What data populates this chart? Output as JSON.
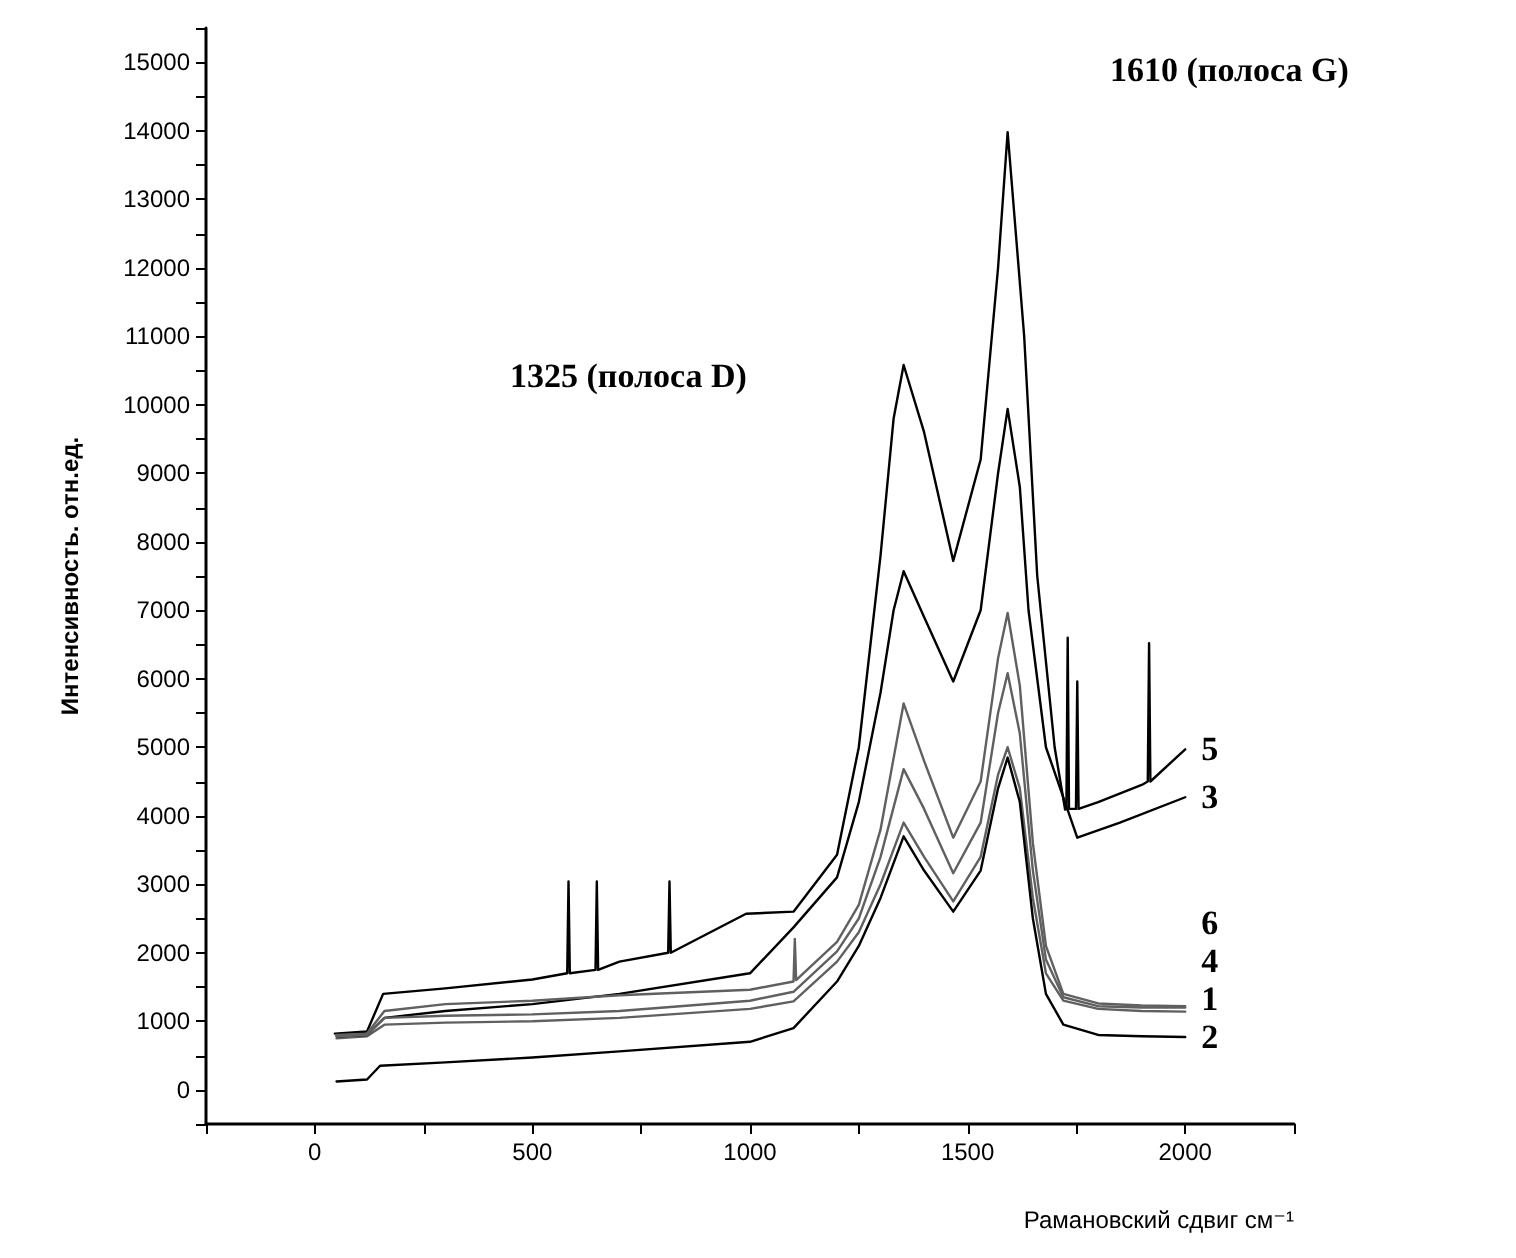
{
  "chart_data": {
    "type": "line",
    "xlabel": "Рамановский сдвиг см⁻¹",
    "ylabel": "Интенсивность. отн.ед.",
    "xlim": [
      -250,
      2250
    ],
    "xticks": [
      {
        "value": -250,
        "label": null
      },
      0,
      {
        "value": 250,
        "label": null
      },
      500,
      {
        "value": 750,
        "label": null
      },
      1000,
      {
        "value": 1250,
        "label": null
      },
      1500,
      {
        "value": 1750,
        "label": null
      },
      2000,
      {
        "value": 2250,
        "label": null
      }
    ],
    "ylim": [
      -500,
      15500
    ],
    "yticks": [
      {
        "value": -500,
        "label": null
      },
      0,
      {
        "value": 500,
        "label": null
      },
      1000,
      {
        "value": 1500,
        "label": null
      },
      2000,
      {
        "value": 2500,
        "label": null
      },
      3000,
      {
        "value": 3500,
        "label": null
      },
      4000,
      {
        "value": 4500,
        "label": null
      },
      5000,
      {
        "value": 5500,
        "label": null
      },
      6000,
      {
        "value": 6500,
        "label": null
      },
      7000,
      {
        "value": 7500,
        "label": null
      },
      8000,
      {
        "value": 8500,
        "label": null
      },
      9000,
      {
        "value": 9500,
        "label": null
      },
      10000,
      {
        "value": 10500,
        "label": null
      },
      11000,
      {
        "value": 11500,
        "label": null
      },
      12000,
      {
        "value": 12500,
        "label": null
      },
      13000,
      {
        "value": 13500,
        "label": null
      },
      14000,
      {
        "value": 14500,
        "label": null
      },
      15000,
      {
        "value": 15500,
        "label": null
      }
    ],
    "grid": false,
    "legend": false,
    "annotations": [
      "1325 (полоса D)",
      "1610 (полоса G)"
    ],
    "series": [
      {
        "name": "1",
        "color": "#606060",
        "x": [
          50,
          120,
          160,
          300,
          500,
          700,
          1000,
          1100,
          1200,
          1250,
          1300,
          1353,
          1400,
          1467,
          1530,
          1570,
          1592,
          1620,
          1650,
          1680,
          1720,
          1800,
          1900,
          2000
        ],
        "values": [
          750,
          780,
          950,
          980,
          1000,
          1050,
          1180,
          1290,
          1870,
          2300,
          3000,
          3900,
          3400,
          2750,
          3400,
          4600,
          5000,
          4400,
          2800,
          1700,
          1300,
          1180,
          1150,
          1140
        ]
      },
      {
        "name": "2",
        "color": "#000000",
        "x": [
          50,
          120,
          150,
          300,
          500,
          700,
          1000,
          1100,
          1200,
          1250,
          1300,
          1353,
          1400,
          1467,
          1530,
          1570,
          1592,
          1620,
          1650,
          1680,
          1720,
          1800,
          1900,
          2000
        ],
        "values": [
          120,
          150,
          350,
          400,
          470,
          560,
          700,
          900,
          1580,
          2100,
          2800,
          3700,
          3200,
          2600,
          3200,
          4400,
          4850,
          4200,
          2500,
          1400,
          950,
          800,
          780,
          770
        ]
      },
      {
        "name": "3",
        "color": "#000000",
        "x": [
          50,
          120,
          160,
          300,
          500,
          700,
          1000,
          1100,
          1200,
          1250,
          1300,
          1330,
          1353,
          1400,
          1467,
          1530,
          1570,
          1592,
          1620,
          1640,
          1680,
          1752,
          1850,
          2000
        ],
        "values": [
          780,
          800,
          1050,
          1150,
          1250,
          1400,
          1700,
          2370,
          3100,
          4200,
          5800,
          7000,
          7570,
          6900,
          5960,
          7000,
          9000,
          9940,
          8800,
          7000,
          5000,
          3680,
          3900,
          4270
        ]
      },
      {
        "name": "4",
        "color": "#606060",
        "x": [
          50,
          120,
          160,
          300,
          500,
          700,
          1000,
          1100,
          1200,
          1250,
          1300,
          1353,
          1400,
          1467,
          1530,
          1570,
          1592,
          1620,
          1650,
          1680,
          1720,
          1800,
          1900,
          2000
        ],
        "values": [
          780,
          800,
          1050,
          1080,
          1100,
          1150,
          1300,
          1430,
          2020,
          2500,
          3400,
          4680,
          4100,
          3160,
          3900,
          5500,
          6080,
          5200,
          3200,
          1900,
          1350,
          1220,
          1200,
          1200
        ]
      },
      {
        "name": "5",
        "color": "#000000",
        "x": [
          46,
          120,
          157,
          300,
          500,
          580,
          583,
          586,
          645,
          648,
          651,
          700,
          812,
          815,
          818,
          991,
          1100,
          1200,
          1250,
          1300,
          1330,
          1353,
          1400,
          1467,
          1530,
          1570,
          1592,
          1630,
          1660,
          1700,
          1724,
          1727,
          1730,
          1733,
          1749,
          1752,
          1755,
          1800,
          1900,
          1914,
          1917,
          1920,
          2000
        ],
        "values": [
          820,
          850,
          1400,
          1480,
          1610,
          1700,
          3040,
          1700,
          1750,
          3040,
          1750,
          1870,
          2000,
          3040,
          2000,
          2570,
          2600,
          3430,
          5000,
          7800,
          9800,
          10580,
          9600,
          7720,
          9200,
          12000,
          13980,
          11000,
          7500,
          5000,
          4090,
          4100,
          6600,
          4100,
          4100,
          5960,
          4100,
          4200,
          4450,
          4500,
          6520,
          4500,
          4970
        ]
      },
      {
        "name": "6",
        "color": "#606060",
        "x": [
          50,
          120,
          160,
          300,
          500,
          700,
          1000,
          1100,
          1103,
          1106,
          1200,
          1250,
          1300,
          1353,
          1400,
          1467,
          1530,
          1570,
          1592,
          1620,
          1650,
          1680,
          1720,
          1800,
          1900,
          2000
        ],
        "values": [
          800,
          820,
          1150,
          1250,
          1300,
          1380,
          1460,
          1580,
          2200,
          1600,
          2160,
          2700,
          3800,
          5640,
          4800,
          3680,
          4500,
          6300,
          6960,
          5900,
          3600,
          2100,
          1400,
          1260,
          1230,
          1220
        ]
      }
    ]
  }
}
